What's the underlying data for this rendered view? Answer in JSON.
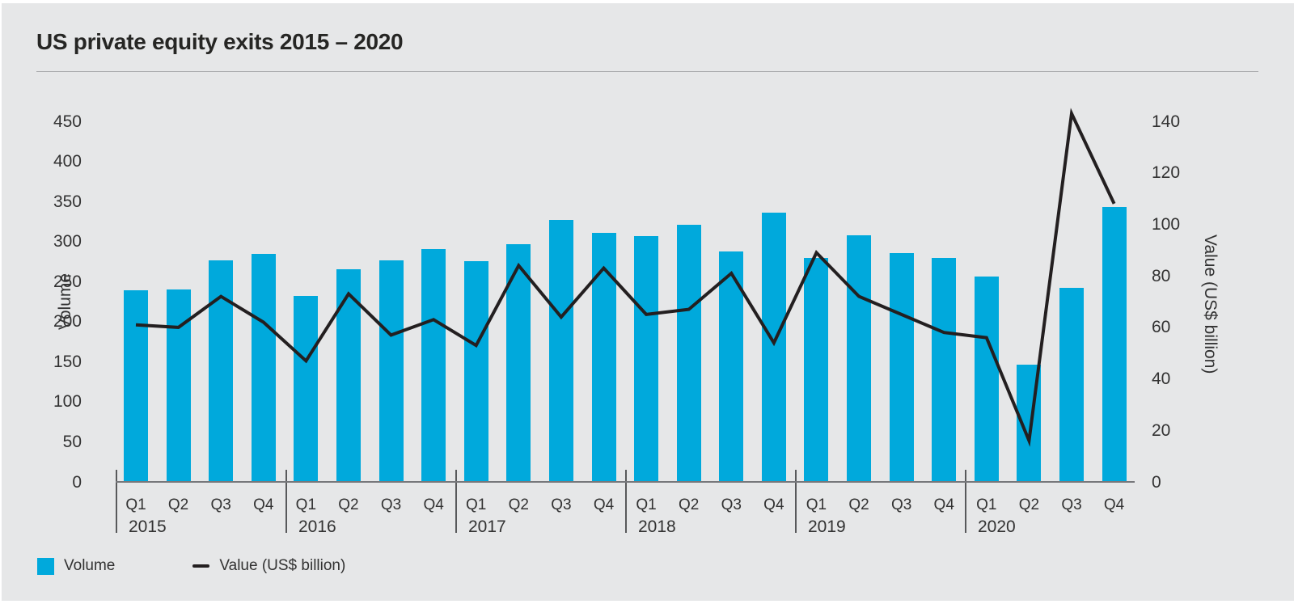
{
  "title": "US private equity exits 2015 – 2020",
  "colors": {
    "background": "#e6e7e8",
    "bar": "#00a9dc",
    "line": "#231f20",
    "axis": "#77787b",
    "text": "#323232"
  },
  "legend": {
    "items": [
      {
        "swatch": "bar",
        "label": "Volume"
      },
      {
        "swatch": "line",
        "label": "Value (US$ billion)"
      }
    ]
  },
  "chart_data": {
    "type": "bar+line",
    "title": "US private equity exits 2015 – 2020",
    "year_groups": [
      {
        "label": "2015",
        "quarters": [
          "Q1",
          "Q2",
          "Q3",
          "Q4"
        ]
      },
      {
        "label": "2016",
        "quarters": [
          "Q1",
          "Q2",
          "Q3",
          "Q4"
        ]
      },
      {
        "label": "2017",
        "quarters": [
          "Q1",
          "Q2",
          "Q3",
          "Q4"
        ]
      },
      {
        "label": "2018",
        "quarters": [
          "Q1",
          "Q2",
          "Q3",
          "Q4"
        ]
      },
      {
        "label": "2019",
        "quarters": [
          "Q1",
          "Q2",
          "Q3",
          "Q4"
        ]
      },
      {
        "label": "2020",
        "quarters": [
          "Q1",
          "Q2",
          "Q3",
          "Q4"
        ]
      }
    ],
    "series": [
      {
        "name": "Volume",
        "type": "bar",
        "axis": "left",
        "values": [
          239,
          240,
          276,
          285,
          232,
          265,
          276,
          291,
          275,
          297,
          327,
          311,
          307,
          321,
          288,
          336,
          280,
          308,
          286,
          280,
          256,
          146,
          242,
          343
        ]
      },
      {
        "name": "Value (US$ billion)",
        "type": "line",
        "axis": "right",
        "values": [
          61,
          60,
          72,
          62,
          47,
          73,
          57,
          63,
          53,
          84,
          64,
          83,
          65,
          67,
          81,
          54,
          89,
          72,
          65,
          58,
          56,
          16,
          143,
          108
        ]
      }
    ],
    "left_axis": {
      "label": "Volume",
      "min": 0,
      "max": 450,
      "ticks": [
        0,
        50,
        100,
        150,
        200,
        250,
        300,
        350,
        400,
        450
      ]
    },
    "right_axis": {
      "label": "Value (US$ billion)",
      "min": 0,
      "max": 140,
      "ticks": [
        0,
        20,
        40,
        60,
        80,
        100,
        120,
        140
      ]
    },
    "grid": false,
    "legend_position": "bottom-left"
  }
}
